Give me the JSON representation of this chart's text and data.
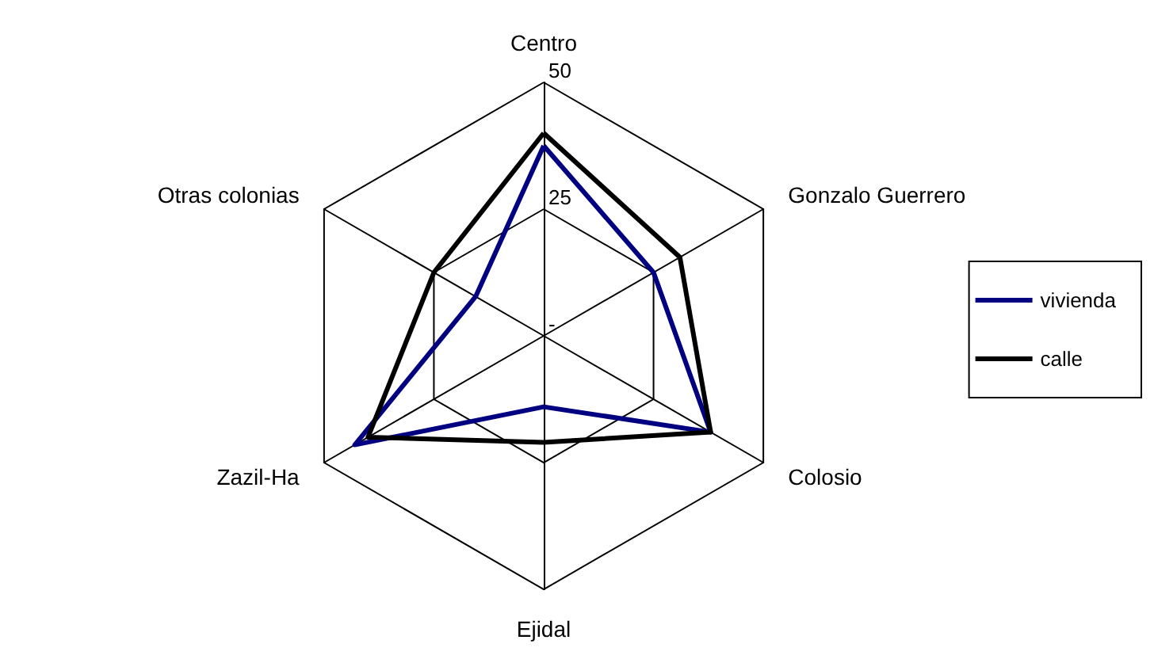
{
  "chart_data": {
    "type": "radar",
    "categories": [
      "Centro",
      "Gonzalo Guerrero",
      "Colosio",
      "Ejidal",
      "Zazil-Ha",
      "Otras colonias"
    ],
    "series": [
      {
        "name": "vivienda",
        "color": "#000080",
        "values": [
          37.5,
          25,
          38,
          14,
          43,
          15.5
        ]
      },
      {
        "name": "calle",
        "color": "#000000",
        "values": [
          40,
          31,
          38,
          21,
          40,
          25
        ]
      }
    ],
    "ylim": [
      0,
      50
    ],
    "yticks": [
      {
        "value": 0,
        "label": "-"
      },
      25,
      50
    ],
    "legend": "right",
    "marker": "none"
  }
}
